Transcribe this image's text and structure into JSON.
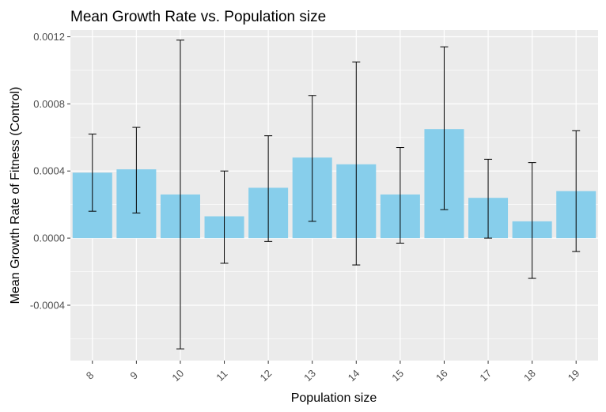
{
  "chart_data": {
    "type": "bar",
    "title": "Mean Growth Rate vs. Population size",
    "xlabel": "Population size",
    "ylabel": "Mean Growth Rate of Fitness (Control)",
    "categories": [
      "8",
      "9",
      "10",
      "11",
      "12",
      "13",
      "14",
      "15",
      "16",
      "17",
      "18",
      "19"
    ],
    "values": [
      0.00039,
      0.00041,
      0.00026,
      0.00013,
      0.0003,
      0.00048,
      0.00044,
      0.00026,
      0.00065,
      0.00024,
      0.0001,
      0.00028
    ],
    "error_low": [
      0.00016,
      0.00015,
      -0.00066,
      -0.00015,
      -2e-05,
      0.0001,
      -0.00016,
      -3e-05,
      0.00017,
      0.0,
      -0.00024,
      -8e-05
    ],
    "error_high": [
      0.00062,
      0.00066,
      0.00118,
      0.0004,
      0.00061,
      0.00085,
      0.00105,
      0.00054,
      0.00114,
      0.00047,
      0.00045,
      0.00064
    ],
    "ylim": [
      -0.00073,
      0.00124
    ],
    "yticks": [
      -0.0004,
      0.0,
      0.0004,
      0.0008,
      0.0012
    ],
    "ytick_labels": [
      "-0.0004",
      "0.0000",
      "0.0004",
      "0.0008",
      "0.0012"
    ],
    "grid": true,
    "bar_color": "#87CEEB",
    "panel_color": "#EBEBEB",
    "grid_color": "#FFFFFF",
    "errorbar_color": "#000000"
  }
}
